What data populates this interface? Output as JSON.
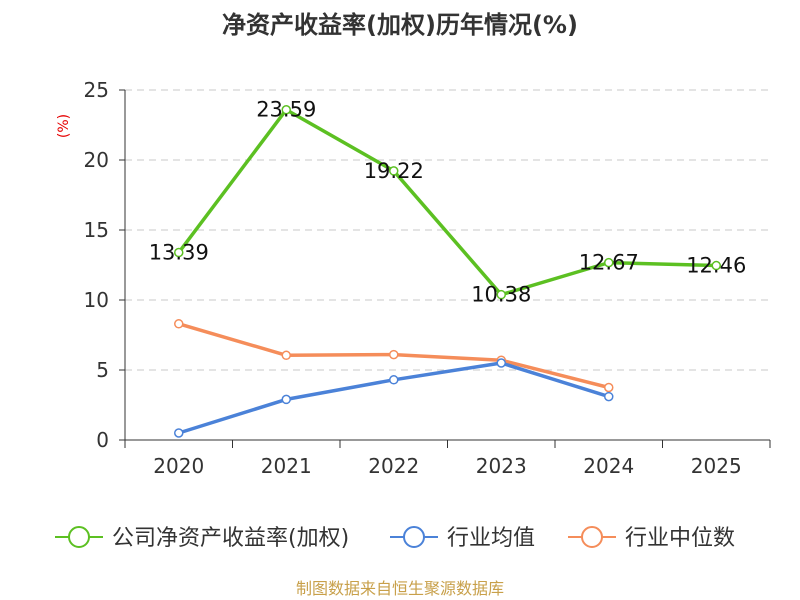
{
  "chart_data": {
    "type": "line",
    "title": "净资产收益率(加权)历年情况(%)",
    "ylabel": "(%)",
    "xlabel": "",
    "categories": [
      "2020",
      "2021",
      "2022",
      "2023",
      "2024",
      "2025"
    ],
    "ylim": [
      0,
      25
    ],
    "yticks": [
      0,
      5,
      10,
      15,
      20,
      25
    ],
    "grid": true,
    "legend_position": "bottom",
    "series": [
      {
        "name": "公司净资产收益率(加权)",
        "color": "#5cc022",
        "values": [
          13.39,
          23.59,
          19.22,
          10.38,
          12.67,
          12.46
        ],
        "show_labels": true
      },
      {
        "name": "行业均值",
        "color": "#4b82d8",
        "values": [
          0.5,
          2.9,
          4.3,
          5.5,
          3.1,
          null
        ],
        "show_labels": false
      },
      {
        "name": "行业中位数",
        "color": "#f58d5a",
        "values": [
          8.3,
          6.05,
          6.1,
          5.7,
          3.75,
          null
        ],
        "show_labels": false
      }
    ]
  },
  "source": "制图数据来自恒生聚源数据库"
}
